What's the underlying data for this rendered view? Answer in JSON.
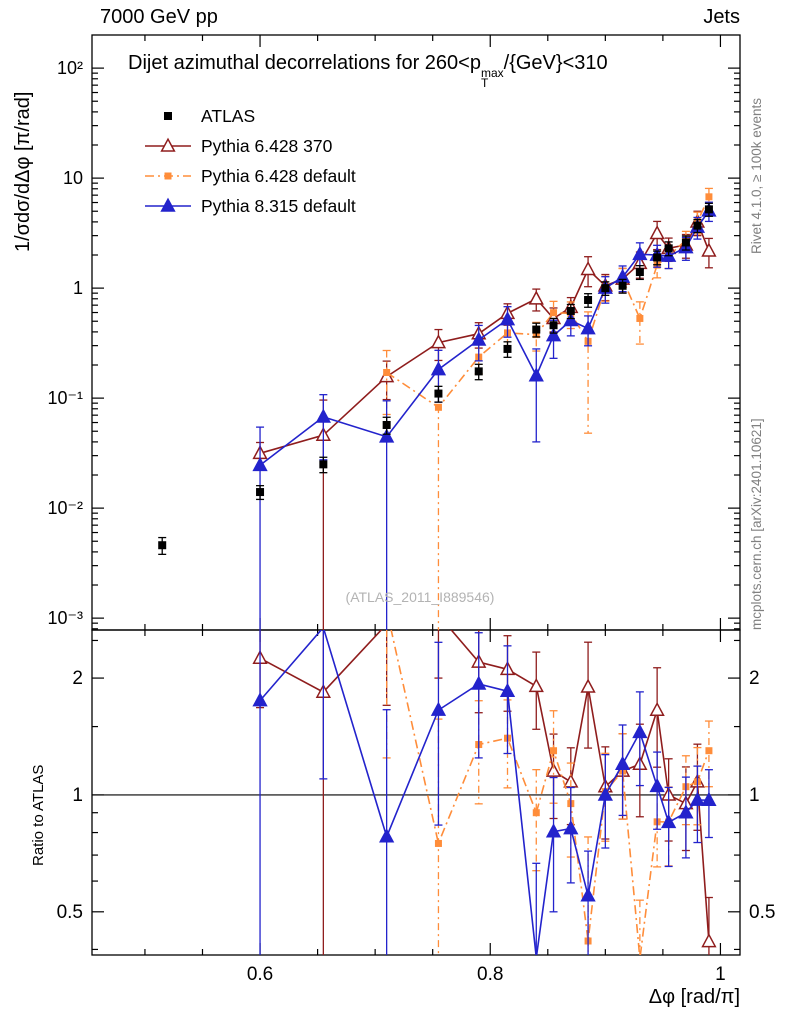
{
  "header": {
    "left": "7000 GeV pp",
    "right": "Jets"
  },
  "title": {
    "prefix": "Dijet azimuthal decorrelations for 260<p",
    "sup": "max",
    "sub": "T",
    "suffix": "/{GeV}<310"
  },
  "legend": {
    "entries": [
      {
        "label": "ATLAS"
      },
      {
        "label": "Pythia 6.428 370"
      },
      {
        "label": "Pythia 6.428 default"
      },
      {
        "label": "Pythia 8.315 default"
      }
    ]
  },
  "watermark": "(ATLAS_2011_I889546)",
  "side_notes": {
    "top_right": "Rivet 4.1.0, ≥ 100k events",
    "bottom_right": "mcplots.cern.ch [arXiv:2401.10621]"
  },
  "axes": {
    "x": {
      "title": "Δφ [rad/π]",
      "range": [
        0.454,
        1.017
      ],
      "major_ticks": [
        {
          "v": 0.6,
          "label": "0.6"
        },
        {
          "v": 0.8,
          "label": "0.8"
        },
        {
          "v": 1.0,
          "label": "1"
        }
      ],
      "minor_start": 0.5,
      "minor_step": 0.05
    },
    "main_y": {
      "title": "1/σdσ/dΔφ [π/rad]",
      "scale": "log",
      "range": [
        0.00078,
        200
      ],
      "major_ticks": [
        {
          "v": 100,
          "label": "10²"
        },
        {
          "v": 10,
          "label": "10"
        },
        {
          "v": 1,
          "label": "1"
        },
        {
          "v": 0.1,
          "label": "10⁻¹"
        },
        {
          "v": 0.01,
          "label": "10⁻²"
        },
        {
          "v": 0.001,
          "label": "10⁻³"
        }
      ]
    },
    "ratio_y": {
      "title": "Ratio to ATLAS",
      "scale": "log",
      "range": [
        0.387,
        2.66
      ],
      "major_ticks": [
        {
          "v": 2,
          "label": "2"
        },
        {
          "v": 1,
          "label": "1"
        },
        {
          "v": 0.5,
          "label": "0.5"
        }
      ],
      "minor_ticks": [
        0.4,
        0.6,
        0.7,
        0.8,
        0.9,
        1.5,
        2.5
      ]
    }
  },
  "chart_data": {
    "type": "scatter",
    "title": "Dijet azimuthal decorrelations for 260<pT^max/{GeV}<310",
    "xlabel": "Δφ [rad/π]",
    "ylabel": "1/σdσ/dΔφ [π/rad]",
    "ratio_ylabel": "Ratio to ATLAS",
    "x_range": [
      0.454,
      1.017
    ],
    "y_range_log": [
      0.00078,
      200
    ],
    "ratio_range_log": [
      0.387,
      2.66
    ],
    "ratio_reference": "ATLAS",
    "x": [
      0.515,
      0.6,
      0.655,
      0.71,
      0.755,
      0.79,
      0.815,
      0.84,
      0.855,
      0.87,
      0.885,
      0.9,
      0.915,
      0.93,
      0.945,
      0.955,
      0.97,
      0.98,
      0.99
    ],
    "series": [
      {
        "name": "ATLAS",
        "color": "#000000",
        "marker": "square-filled",
        "line": "none",
        "values": [
          0.0046,
          0.014,
          0.025,
          0.057,
          0.11,
          0.175,
          0.28,
          0.42,
          0.46,
          0.62,
          0.78,
          1.0,
          1.05,
          1.4,
          1.9,
          2.3,
          2.6,
          3.7,
          5.2
        ],
        "errors": [
          0.0008,
          0.002,
          0.004,
          0.01,
          0.018,
          0.028,
          0.045,
          0.06,
          0.07,
          0.09,
          0.11,
          0.14,
          0.15,
          0.2,
          0.27,
          0.33,
          0.38,
          0.5,
          0.7
        ]
      },
      {
        "name": "Pythia 6.428 370",
        "color": "#8f1d1d",
        "marker": "triangle-open",
        "line": "solid",
        "values": [
          null,
          0.0315,
          0.046,
          0.157,
          0.32,
          0.385,
          0.59,
          0.8,
          0.53,
          0.67,
          1.48,
          1.05,
          1.21,
          1.68,
          3.14,
          2.3,
          2.47,
          4.0,
          2.18
        ],
        "errors": [
          null,
          0.008,
          0.05,
          0.06,
          0.1,
          0.1,
          0.13,
          0.18,
          0.13,
          0.15,
          0.45,
          0.28,
          0.3,
          0.45,
          0.9,
          0.55,
          0.6,
          1.0,
          0.65
        ]
      },
      {
        "name": "Pythia 6.428 default",
        "color": "#ff8d3a",
        "marker": "square-filled",
        "line": "dashdot",
        "values": [
          null,
          null,
          null,
          0.171,
          0.0825,
          0.236,
          0.392,
          0.378,
          0.598,
          0.589,
          0.328,
          1.02,
          1.21,
          0.53,
          1.62,
          1.96,
          2.73,
          4.0,
          6.76
        ],
        "errors": [
          null,
          null,
          null,
          0.1,
          0.09,
          0.07,
          0.1,
          0.11,
          0.16,
          0.16,
          0.28,
          0.26,
          0.3,
          0.22,
          0.38,
          0.45,
          0.55,
          0.9,
          1.3
        ]
      },
      {
        "name": "Pythia 8.315 default",
        "color": "#2323cc",
        "marker": "triangle-filled",
        "line": "solid",
        "values": [
          null,
          0.0245,
          0.0675,
          0.0445,
          0.182,
          0.338,
          0.518,
          0.16,
          0.37,
          0.508,
          0.429,
          1.0,
          1.26,
          2.03,
          2.0,
          1.955,
          2.34,
          3.59,
          5.04
        ],
        "errors": [
          null,
          0.03,
          0.04,
          0.05,
          0.09,
          0.12,
          0.16,
          0.12,
          0.14,
          0.14,
          0.13,
          0.27,
          0.33,
          0.55,
          0.45,
          0.45,
          0.55,
          0.8,
          1.0
        ]
      }
    ]
  }
}
